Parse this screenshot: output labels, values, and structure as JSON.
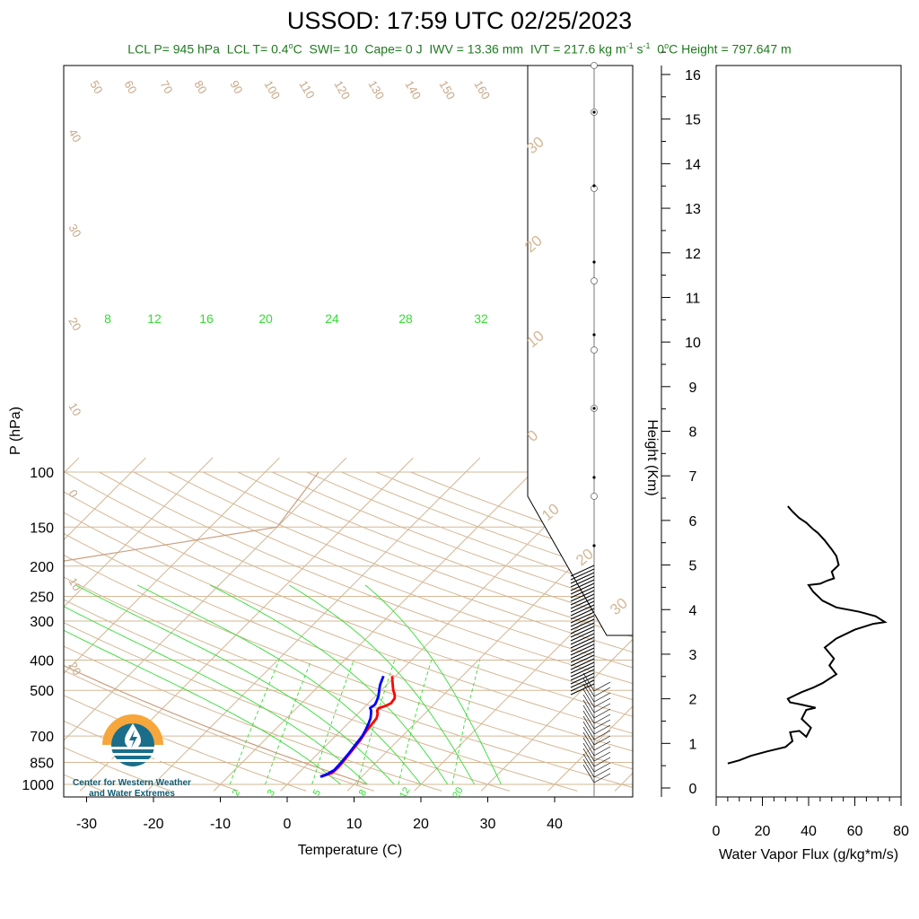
{
  "title": "USSOD: 17:59 UTC 02/25/2023",
  "subtitle": {
    "lcl_p": "LCL P= 945 hPa",
    "lcl_t_pre": "LCL T= 0.4",
    "lcl_t_unit": "o",
    "lcl_t_c": "C",
    "swi": "SWI= 10",
    "cape": "Cape= 0 J",
    "iwv": "IWV = 13.36 mm",
    "ivt_pre": "IVT = 217.6 kg m",
    "ivt_exp1": "-1",
    "ivt_mid": " s",
    "ivt_exp2": "-1",
    "zero_pre": "0",
    "zero_unit": "o",
    "zero_post": "C Height = 797.647 m"
  },
  "logo": {
    "line1": "Center for Western Weather",
    "line2": "and Water Extremes"
  },
  "colors": {
    "temperature": "#ff0000",
    "dewpoint": "#0000ff",
    "isotherm": "#d4b896",
    "dry_adiabat": "#d4b896",
    "moist_adiabat": "#33dd33",
    "mixing_ratio": "#33dd33",
    "flux": "#000000",
    "subtitle": "#1f7a1f",
    "logo_orange": "#f7a63b",
    "logo_teal": "#1a6e8a"
  },
  "chart_data": [
    {
      "type": "skew-t",
      "xlabel": "Temperature (C)",
      "ylabel": "P (hPa)",
      "x_ticks": [
        -30,
        -20,
        -10,
        0,
        10,
        20,
        30,
        40
      ],
      "pressure_ticks": [
        100,
        150,
        200,
        250,
        300,
        400,
        500,
        700,
        850,
        1000
      ],
      "dry_adiabat_labels": [
        "50",
        "60",
        "70",
        "80",
        "90",
        "100",
        "110",
        "120",
        "130",
        "140",
        "150",
        "160",
        "40",
        "30",
        "20",
        "10",
        "0",
        "10",
        "20"
      ],
      "mixing_ratio_labels": [
        "2",
        "3",
        "5",
        "8",
        "12",
        "20"
      ],
      "moist_adiabat_labels": [
        "8",
        "12",
        "16",
        "20",
        "24",
        "28",
        "32"
      ],
      "skew_isotherm_labels": [
        "30",
        "20",
        "10",
        "0",
        "10",
        "20",
        "30"
      ],
      "temperature_profile": [
        {
          "p": 450,
          "t": -0.5
        },
        {
          "p": 465,
          "t": 0.2
        },
        {
          "p": 480,
          "t": 0.9
        },
        {
          "p": 500,
          "t": 1.8
        },
        {
          "p": 515,
          "t": 2.6
        },
        {
          "p": 530,
          "t": 3.2
        },
        {
          "p": 550,
          "t": 3.4
        },
        {
          "p": 560,
          "t": 3.0
        },
        {
          "p": 570,
          "t": 2.3
        },
        {
          "p": 580,
          "t": 2.4
        },
        {
          "p": 595,
          "t": 3.0
        },
        {
          "p": 615,
          "t": 3.5
        },
        {
          "p": 635,
          "t": 3.6
        },
        {
          "p": 650,
          "t": 3.7
        },
        {
          "p": 680,
          "t": 3.9
        },
        {
          "p": 720,
          "t": 4.3
        },
        {
          "p": 770,
          "t": 4.6
        },
        {
          "p": 830,
          "t": 4.9
        },
        {
          "p": 880,
          "t": 5.1
        },
        {
          "p": 920,
          "t": 5.0
        },
        {
          "p": 935,
          "t": 4.3
        },
        {
          "p": 944,
          "t": 4.0
        }
      ],
      "dewpoint_profile": [
        {
          "p": 450,
          "t": -1.8
        },
        {
          "p": 465,
          "t": -1.4
        },
        {
          "p": 480,
          "t": -1.0
        },
        {
          "p": 500,
          "t": -0.3
        },
        {
          "p": 520,
          "t": 0.4
        },
        {
          "p": 540,
          "t": 0.9
        },
        {
          "p": 555,
          "t": 1.2
        },
        {
          "p": 570,
          "t": 1.0
        },
        {
          "p": 580,
          "t": 1.5
        },
        {
          "p": 595,
          "t": 2.0
        },
        {
          "p": 615,
          "t": 2.6
        },
        {
          "p": 640,
          "t": 3.1
        },
        {
          "p": 670,
          "t": 3.6
        },
        {
          "p": 700,
          "t": 4.0
        },
        {
          "p": 750,
          "t": 4.3
        },
        {
          "p": 800,
          "t": 4.6
        },
        {
          "p": 850,
          "t": 4.8
        },
        {
          "p": 900,
          "t": 4.9
        },
        {
          "p": 930,
          "t": 4.4
        },
        {
          "p": 945,
          "t": 3.8
        }
      ]
    },
    {
      "type": "line",
      "xlabel": "Water Vapor Flux (g/kg*m/s)",
      "ylabel": "Height (Km)",
      "xlim": [
        0,
        80
      ],
      "ylim": [
        0,
        16
      ],
      "x_ticks": [
        0,
        20,
        40,
        60,
        80
      ],
      "y_ticks": [
        0,
        1,
        2,
        3,
        4,
        5,
        6,
        7,
        8,
        9,
        10,
        11,
        12,
        13,
        14,
        15,
        16
      ],
      "series": [
        {
          "points": [
            [
              5,
              0.55
            ],
            [
              10,
              0.62
            ],
            [
              15,
              0.72
            ],
            [
              22,
              0.82
            ],
            [
              30,
              0.92
            ],
            [
              33,
              1.05
            ],
            [
              32,
              1.25
            ],
            [
              36,
              1.28
            ],
            [
              39,
              1.15
            ],
            [
              41,
              1.35
            ],
            [
              37,
              1.55
            ],
            [
              39,
              1.75
            ],
            [
              43,
              1.8
            ],
            [
              36,
              1.88
            ],
            [
              32,
              1.92
            ],
            [
              31,
              2.0
            ],
            [
              37,
              2.15
            ],
            [
              42,
              2.25
            ],
            [
              46,
              2.35
            ],
            [
              52,
              2.55
            ],
            [
              49,
              2.75
            ],
            [
              51,
              2.9
            ],
            [
              47,
              3.15
            ],
            [
              52,
              3.35
            ],
            [
              60,
              3.55
            ],
            [
              68,
              3.68
            ],
            [
              73,
              3.72
            ],
            [
              69,
              3.85
            ],
            [
              62,
              3.95
            ],
            [
              52,
              4.05
            ],
            [
              46,
              4.2
            ],
            [
              42,
              4.4
            ],
            [
              40,
              4.55
            ],
            [
              45,
              4.58
            ],
            [
              48,
              4.65
            ],
            [
              51,
              4.7
            ],
            [
              50,
              4.85
            ],
            [
              53,
              5.0
            ],
            [
              52,
              5.2
            ],
            [
              50,
              5.35
            ],
            [
              47,
              5.55
            ],
            [
              44,
              5.72
            ],
            [
              42,
              5.8
            ],
            [
              39,
              5.95
            ],
            [
              36,
              6.05
            ],
            [
              33,
              6.2
            ],
            [
              31,
              6.32
            ]
          ]
        }
      ]
    }
  ]
}
